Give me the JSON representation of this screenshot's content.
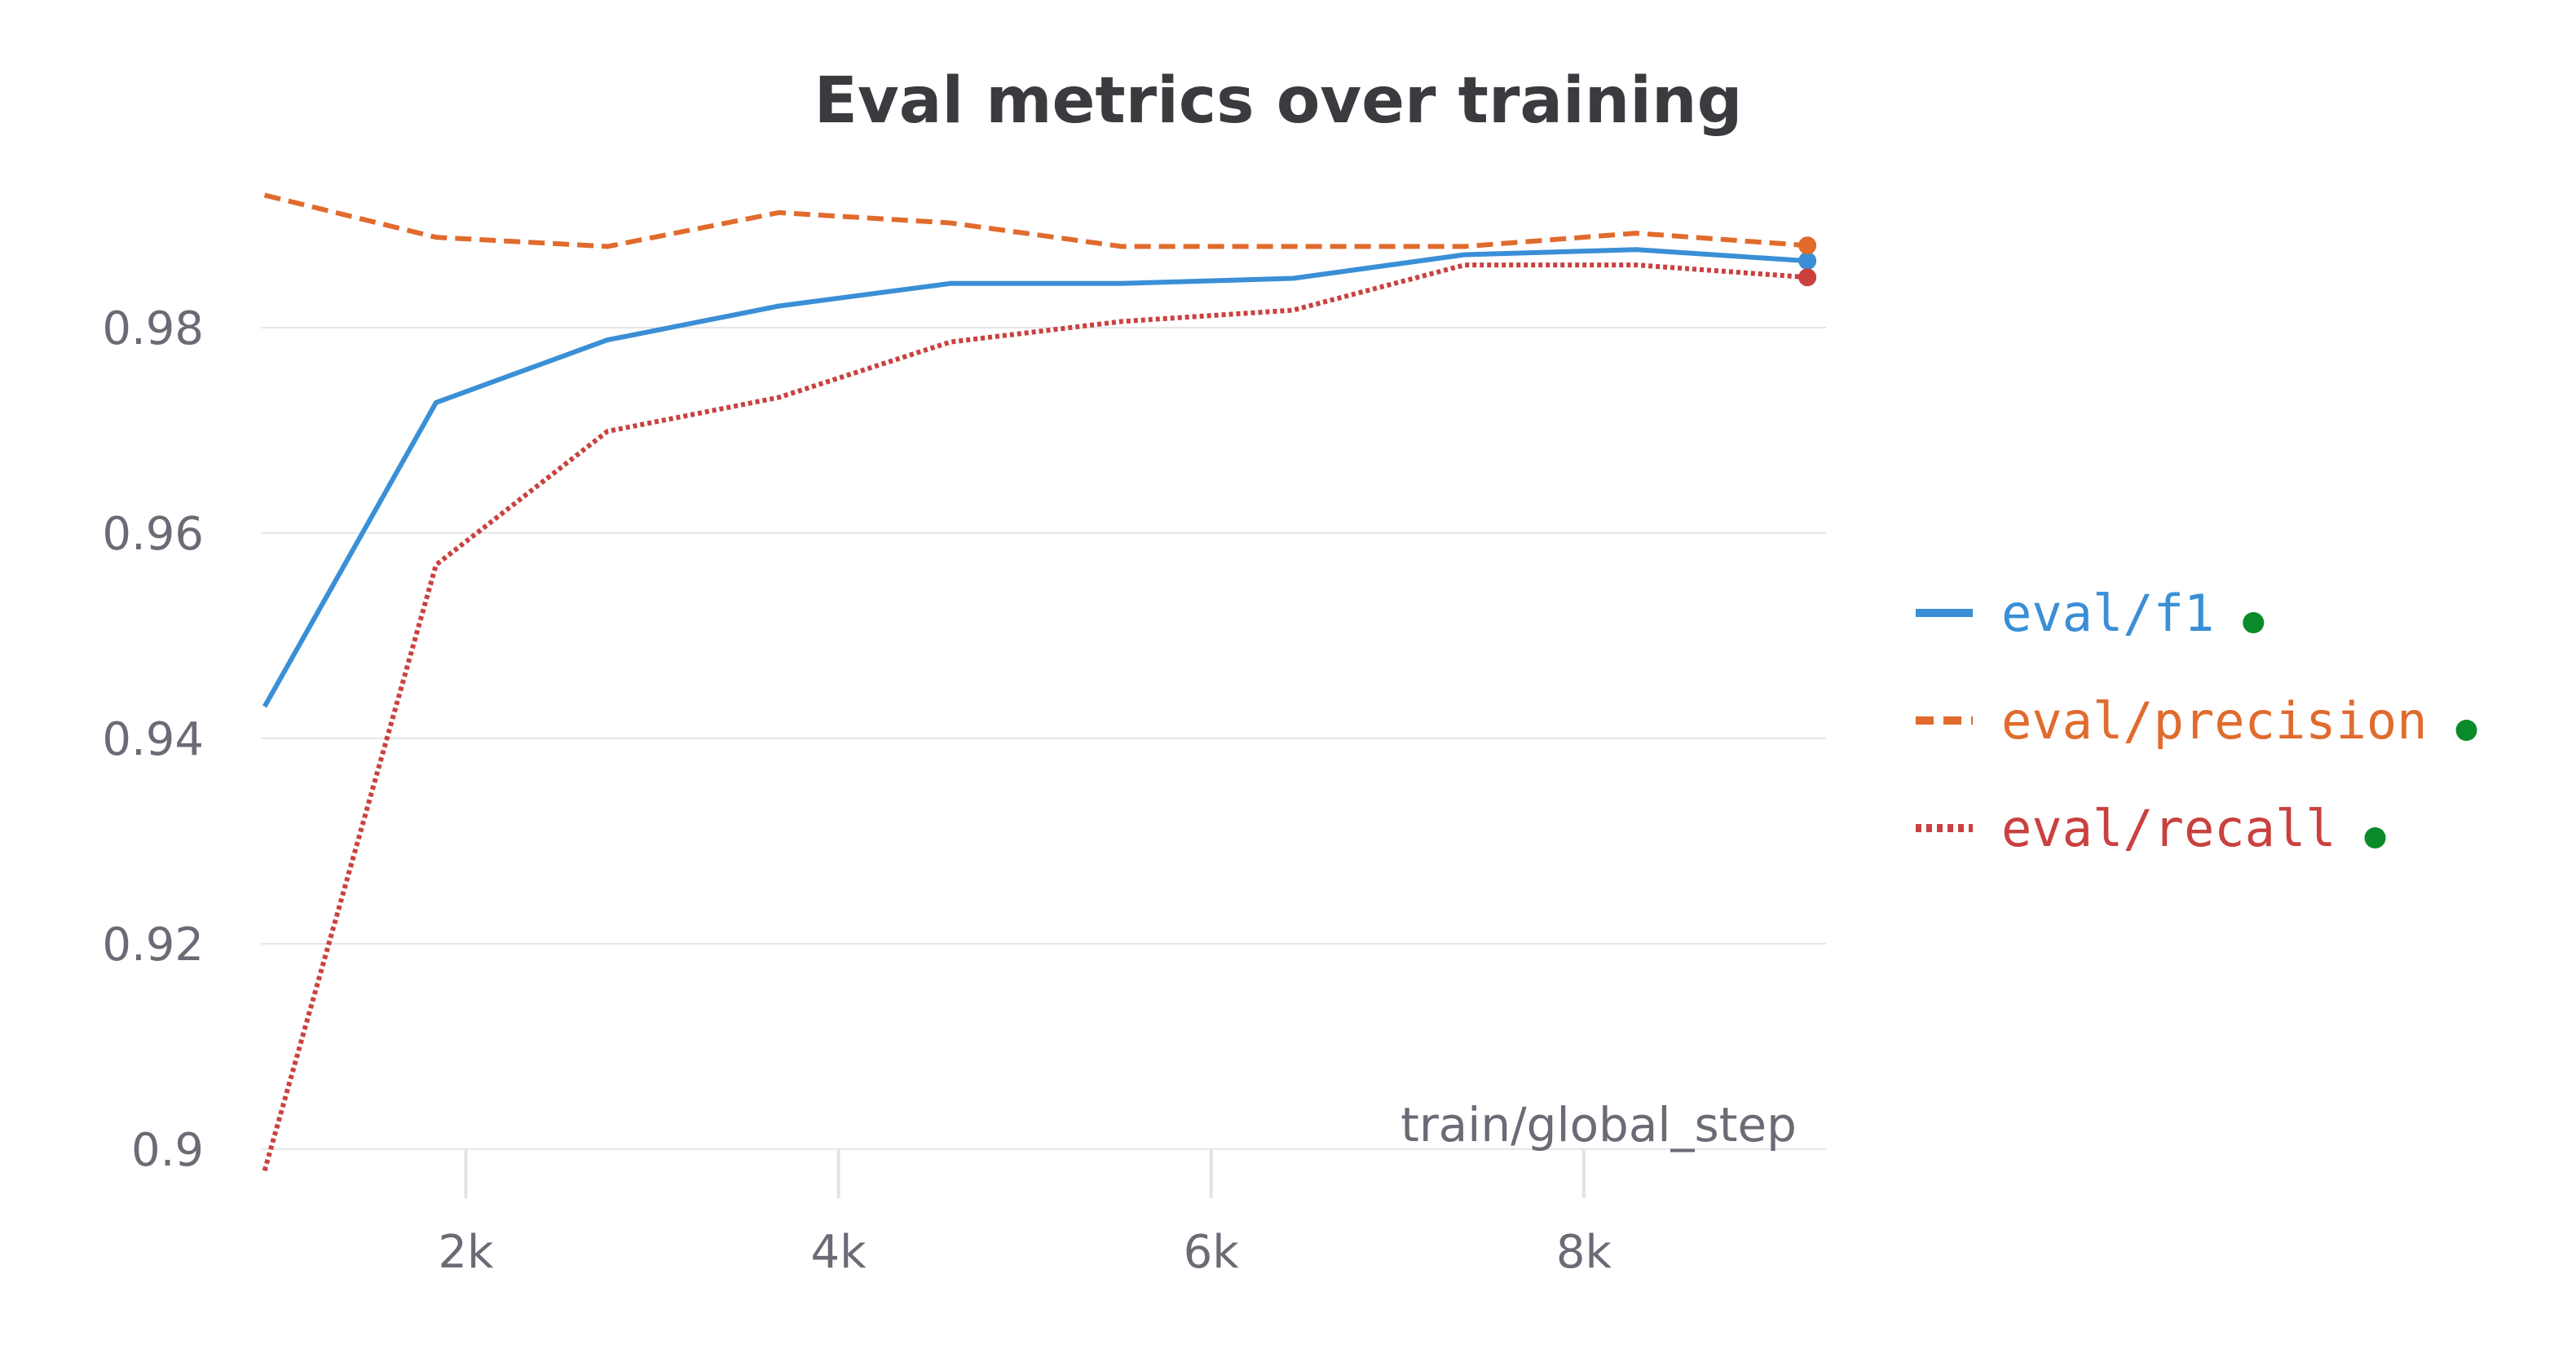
{
  "chart_data": {
    "type": "line",
    "title": "Eval metrics over training",
    "xlabel": "train/global_step",
    "ylabel": "",
    "xlim": [
      900,
      9300
    ],
    "ylim": [
      0.898,
      1.0
    ],
    "x_ticks": [
      2000,
      4000,
      6000,
      8000
    ],
    "x_tick_labels": [
      "2k",
      "4k",
      "6k",
      "8k"
    ],
    "y_ticks": [
      0.9,
      0.92,
      0.94,
      0.96,
      0.98
    ],
    "y_tick_labels": [
      "0.9",
      "0.92",
      "0.94",
      "0.96",
      "0.98"
    ],
    "grid": "horizontal",
    "legend_position": "right",
    "x": [
      920,
      1840,
      2760,
      3680,
      4600,
      5520,
      6440,
      7360,
      8280,
      9200
    ],
    "series": [
      {
        "name": "eval/f1",
        "color": "#3a8fd6",
        "style": "solid",
        "values": [
          0.9431,
          0.9727,
          0.9788,
          0.9821,
          0.9843,
          0.9843,
          0.9848,
          0.9871,
          0.9876,
          0.9865
        ]
      },
      {
        "name": "eval/precision",
        "color": "#e06b2d",
        "style": "dashed",
        "values": [
          0.9929,
          0.9888,
          0.9879,
          0.9912,
          0.9902,
          0.9879,
          0.9879,
          0.9879,
          0.9892,
          0.988
        ]
      },
      {
        "name": "eval/recall",
        "color": "#c9413f",
        "style": "dotted",
        "values": [
          0.8979,
          0.9569,
          0.9699,
          0.9732,
          0.9786,
          0.9806,
          0.9817,
          0.9861,
          0.9861,
          0.9849
        ]
      }
    ],
    "legend_status_color": "#0a8a2a"
  }
}
